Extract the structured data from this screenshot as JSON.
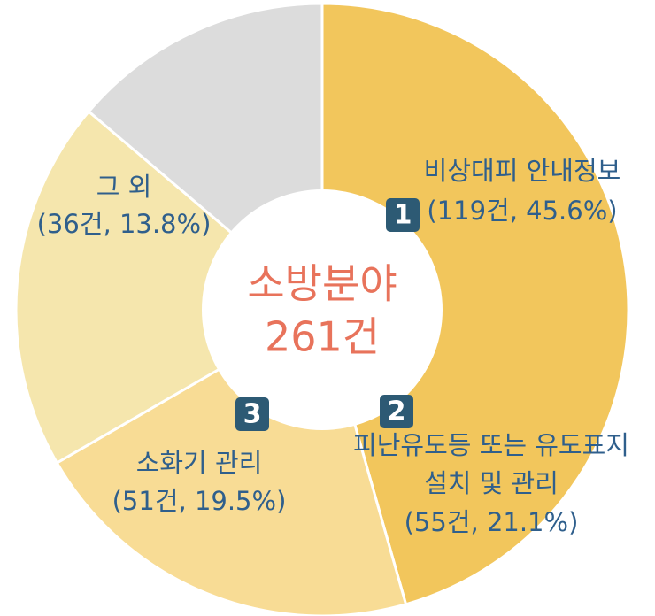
{
  "chart_data": {
    "type": "pie",
    "title": "소방분야",
    "subtitle": "261건",
    "categories": [
      [
        "비상대피 안내정보"
      ],
      [
        "피난유도등 또는 유도표지",
        "설치 및 관리"
      ],
      [
        "소화기 관리"
      ],
      [
        "그 외"
      ]
    ],
    "values": [
      119,
      55,
      51,
      36
    ],
    "value_labels": [
      "(119건, 45.6%)",
      "(55건, 21.1%)",
      "(51건, 19.5%)",
      "(36건, 13.8%)"
    ],
    "badges": [
      "1",
      "2",
      "3",
      null
    ],
    "colors": [
      "#f2c65c",
      "#f8dc95",
      "#f5e6ad",
      "#dcdcdc"
    ]
  }
}
